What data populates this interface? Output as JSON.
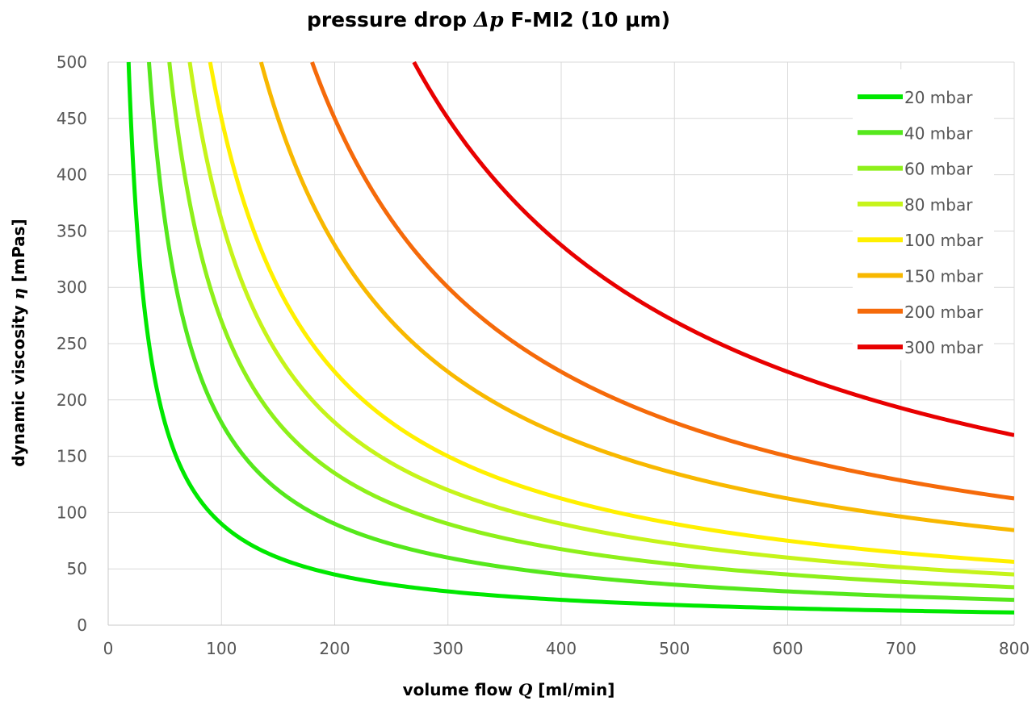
{
  "chart_data": {
    "type": "line",
    "title_parts": [
      "pressure drop ",
      "Δp",
      " F-MI2 (10 µm)"
    ],
    "xlabel_parts": [
      "volume flow ",
      "Q",
      " [ml/min]"
    ],
    "ylabel_parts": [
      "dynamic viscosity ",
      "η",
      " [mPas]"
    ],
    "xlim": [
      0,
      800
    ],
    "ylim": [
      0,
      500
    ],
    "xticks": [
      0,
      100,
      200,
      300,
      400,
      500,
      600,
      700,
      800
    ],
    "yticks": [
      0,
      50,
      100,
      150,
      200,
      250,
      300,
      350,
      400,
      450,
      500
    ],
    "grid": true,
    "legend_position": "top-right",
    "series": [
      {
        "name": "20 mbar",
        "k": 9000,
        "color": "#00e800"
      },
      {
        "name": "40 mbar",
        "k": 18000,
        "color": "#55e81c"
      },
      {
        "name": "60 mbar",
        "k": 27000,
        "color": "#8ef01a"
      },
      {
        "name": "80 mbar",
        "k": 36000,
        "color": "#c6f41a"
      },
      {
        "name": "100 mbar",
        "k": 45000,
        "color": "#fff000"
      },
      {
        "name": "150 mbar",
        "k": 67500,
        "color": "#f8b800"
      },
      {
        "name": "200 mbar",
        "k": 90000,
        "color": "#f56a0a"
      },
      {
        "name": "300 mbar",
        "k": 135000,
        "color": "#e80000"
      }
    ]
  }
}
